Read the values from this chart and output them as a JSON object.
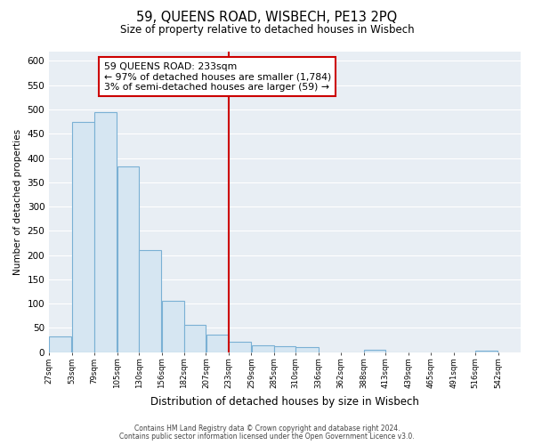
{
  "title": "59, QUEENS ROAD, WISBECH, PE13 2PQ",
  "subtitle": "Size of property relative to detached houses in Wisbech",
  "xlabel": "Distribution of detached houses by size in Wisbech",
  "ylabel": "Number of detached properties",
  "bar_left_edges": [
    27,
    53,
    79,
    105,
    130,
    156,
    182,
    207,
    233,
    259,
    285,
    310,
    336,
    362,
    388,
    413,
    439,
    465,
    491,
    516
  ],
  "bar_widths": [
    26,
    26,
    26,
    25,
    26,
    26,
    25,
    26,
    26,
    26,
    25,
    26,
    26,
    26,
    25,
    26,
    26,
    26,
    25,
    26
  ],
  "bar_heights": [
    32,
    474,
    494,
    382,
    210,
    106,
    57,
    37,
    21,
    14,
    12,
    10,
    0,
    0,
    5,
    0,
    0,
    0,
    0,
    4
  ],
  "tick_labels": [
    "27sqm",
    "53sqm",
    "79sqm",
    "105sqm",
    "130sqm",
    "156sqm",
    "182sqm",
    "207sqm",
    "233sqm",
    "259sqm",
    "285sqm",
    "310sqm",
    "336sqm",
    "362sqm",
    "388sqm",
    "413sqm",
    "439sqm",
    "465sqm",
    "491sqm",
    "516sqm",
    "542sqm"
  ],
  "tick_positions": [
    27,
    53,
    79,
    105,
    130,
    156,
    182,
    207,
    233,
    259,
    285,
    310,
    336,
    362,
    388,
    413,
    439,
    465,
    491,
    516,
    542
  ],
  "bar_color": "#d6e6f2",
  "bar_edge_color": "#7ab0d4",
  "vline_x": 233,
  "vline_color": "#cc0000",
  "annotation_title": "59 QUEENS ROAD: 233sqm",
  "annotation_line1": "← 97% of detached houses are smaller (1,784)",
  "annotation_line2": "3% of semi-detached houses are larger (59) →",
  "annotation_box_color": "#ffffff",
  "annotation_box_edge": "#cc0000",
  "ylim": [
    0,
    620
  ],
  "yticks": [
    0,
    50,
    100,
    150,
    200,
    250,
    300,
    350,
    400,
    450,
    500,
    550,
    600
  ],
  "xlim": [
    27,
    568
  ],
  "footer_line1": "Contains HM Land Registry data © Crown copyright and database right 2024.",
  "footer_line2": "Contains public sector information licensed under the Open Government Licence v3.0.",
  "bg_color": "#ffffff",
  "plot_bg_color": "#e8eef4",
  "grid_color": "#ffffff"
}
